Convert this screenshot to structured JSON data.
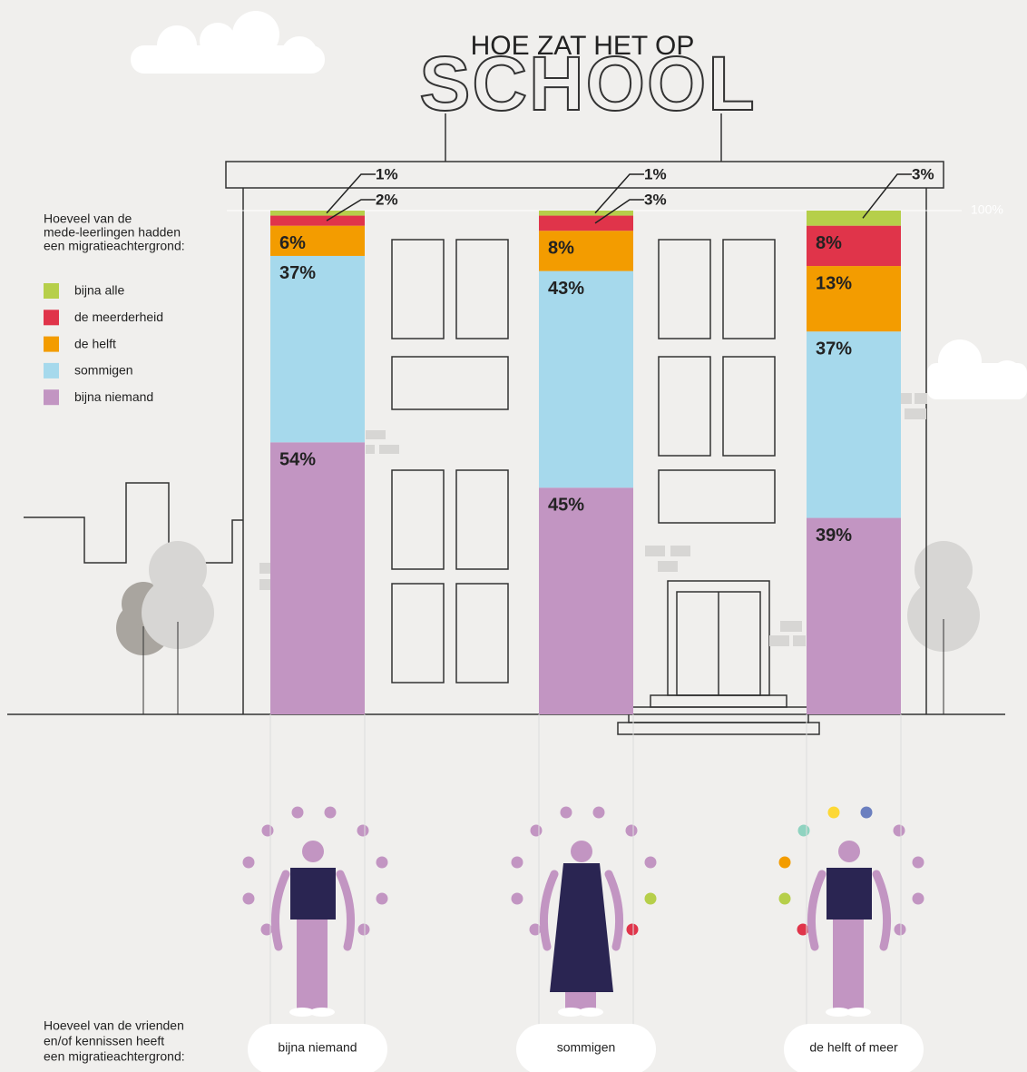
{
  "chart_data": {
    "type": "bar",
    "stacked": true,
    "title": "HOE ZAT HET OP",
    "subtitle": "SCHOOL",
    "legend_title": [
      "Hoeveel van de",
      "mede-leerlingen hadden",
      "een migratieachtergrond:"
    ],
    "x_title": [
      "Hoeveel van de vrienden",
      "en/of kennissen heeft",
      "een migratieachtergrond:"
    ],
    "categories": [
      "bijna niemand",
      "sommigen",
      "de helft of meer"
    ],
    "series": [
      {
        "name": "bijna alle",
        "color": "#b6cf4a",
        "values": [
          1,
          1,
          3
        ],
        "value_labels": [
          "1%",
          "1%",
          "3%"
        ]
      },
      {
        "name": "de meerderheid",
        "color": "#e0344a",
        "values": [
          2,
          3,
          8
        ],
        "value_labels": [
          "2%",
          "3%",
          "8%"
        ]
      },
      {
        "name": "de helft",
        "color": "#f39c00",
        "values": [
          6,
          8,
          13
        ],
        "value_labels": [
          "6%",
          "8%",
          "13%"
        ]
      },
      {
        "name": "sommigen",
        "color": "#a6d9ec",
        "values": [
          37,
          43,
          37
        ],
        "value_labels": [
          "37%",
          "43%",
          "37%"
        ]
      },
      {
        "name": "bijna niemand",
        "color": "#c295c2",
        "values": [
          54,
          45,
          39
        ],
        "value_labels": [
          "54%",
          "45%",
          "39%"
        ]
      }
    ],
    "ylim": [
      0,
      100
    ],
    "yticks": [
      {
        "value": 100,
        "label": "100%"
      }
    ]
  }
}
